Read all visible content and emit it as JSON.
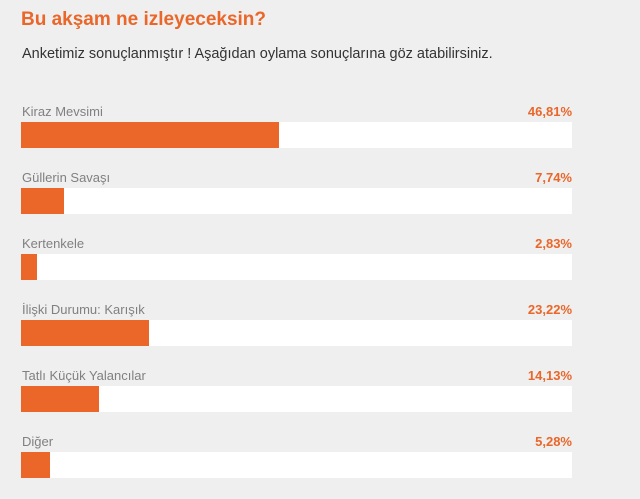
{
  "colors": {
    "accent": "#ea6629",
    "background": "#efefef",
    "track": "#ffffff",
    "label": "#808080",
    "text": "#333333"
  },
  "poll": {
    "title": "Bu akşam ne izleyeceksin?",
    "subtitle": "Anketimiz sonuçlanmıştır ! Aşağıdan oylama sonuçlarına göz atabilirsiniz.",
    "options": [
      {
        "label": "Kiraz Mevsimi",
        "percent_text": "46,81%",
        "fill_percent": 46.81
      },
      {
        "label": "Güllerin Savaşı",
        "percent_text": "7,74%",
        "fill_percent": 7.74
      },
      {
        "label": "Kertenkele",
        "percent_text": "2,83%",
        "fill_percent": 2.83
      },
      {
        "label": "İlişki Durumu: Karışık",
        "percent_text": "23,22%",
        "fill_percent": 23.22
      },
      {
        "label": "Tatlı Küçük Yalancılar",
        "percent_text": "14,13%",
        "fill_percent": 14.13
      },
      {
        "label": "Diğer",
        "percent_text": "5,28%",
        "fill_percent": 5.28
      }
    ]
  }
}
